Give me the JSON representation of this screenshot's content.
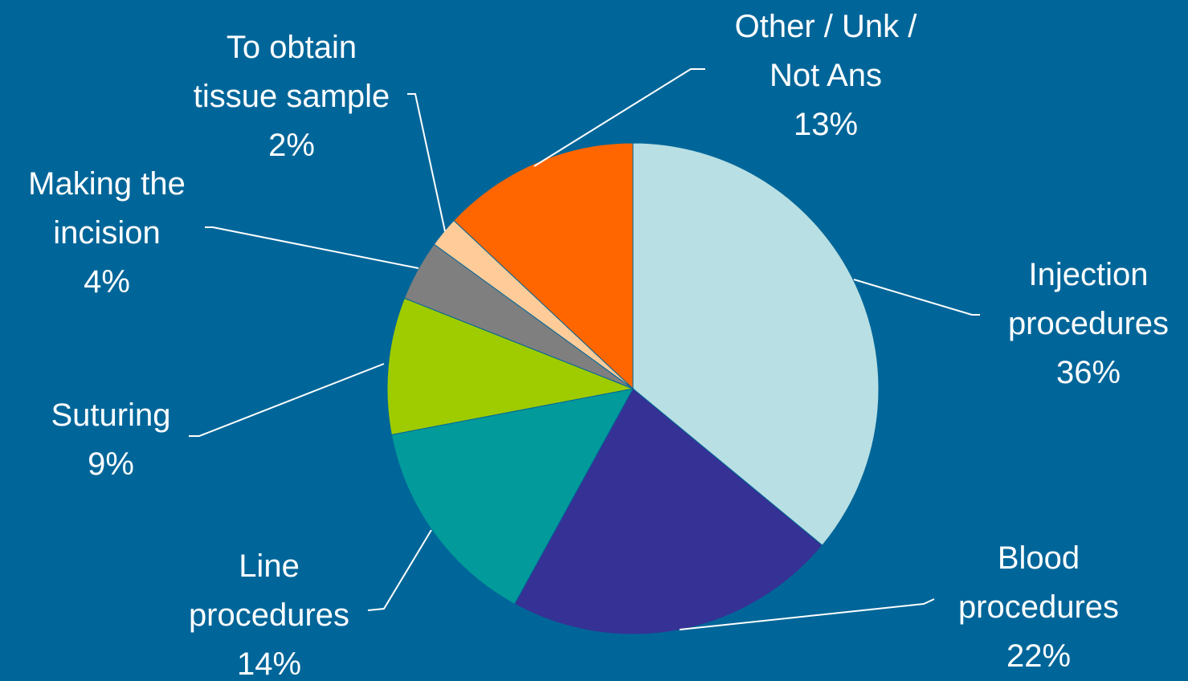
{
  "chart_data": {
    "type": "pie",
    "title": "",
    "start_angle_deg": 90,
    "direction": "clockwise",
    "slices": [
      {
        "label_lines": [
          "Injection",
          "procedures",
          "36%"
        ],
        "value": 36,
        "color": "#b8dfe3"
      },
      {
        "label_lines": [
          "Blood",
          "procedures",
          "22%"
        ],
        "value": 22,
        "color": "#363194"
      },
      {
        "label_lines": [
          "Line",
          "procedures",
          "14%"
        ],
        "value": 14,
        "color": "#029a9a"
      },
      {
        "label_lines": [
          "Suturing",
          "9%"
        ],
        "value": 9,
        "color": "#9ecc00"
      },
      {
        "label_lines": [
          "Making the",
          "incision",
          "4%"
        ],
        "value": 4,
        "color": "#7f7f7f"
      },
      {
        "label_lines": [
          "To obtain",
          "tissue sample",
          "2%"
        ],
        "value": 2,
        "color": "#ffcc99"
      },
      {
        "label_lines": [
          "Other / Unk /",
          "Not Ans",
          "13%"
        ],
        "value": 13,
        "color": "#ff6600"
      }
    ]
  }
}
